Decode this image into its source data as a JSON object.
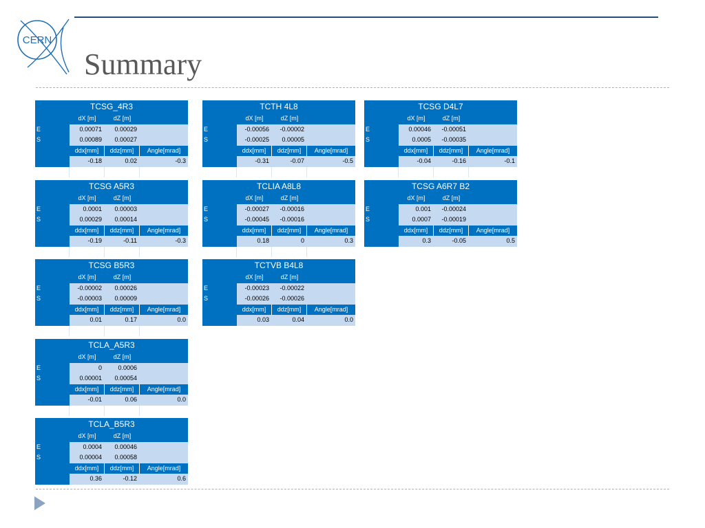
{
  "slide": {
    "title": "Summary",
    "logo_text": "CERN"
  },
  "labels": {
    "dx_m": "dX [m]",
    "dz_m": "dZ [m]",
    "e": "E",
    "s": "S",
    "ddx_mm": "ddx[mm]",
    "ddz_mm": "ddz[mm]",
    "angle_mrad": "Angle[mrad]"
  },
  "tables": [
    {
      "name": "TCSG_4R3",
      "e_dx": "0.00071",
      "e_dz": "0.00029",
      "s_dx": "0.00089",
      "s_dz": "0.00027",
      "ddx": "-0.18",
      "ddz": "0.02",
      "angle": "-0.3"
    },
    {
      "name": "TCTH 4L8",
      "e_dx": "-0.00056",
      "e_dz": "-0.00002",
      "s_dx": "-0.00025",
      "s_dz": "0.00005",
      "ddx": "-0.31",
      "ddz": "-0.07",
      "angle": "-0.5"
    },
    {
      "name": "TCSG D4L7",
      "e_dx": "0.00046",
      "e_dz": "-0.00051",
      "s_dx": "0.0005",
      "s_dz": "-0.00035",
      "ddx": "-0.04",
      "ddz": "-0.16",
      "angle": "-0.1"
    },
    {
      "name": "TCSG A5R3",
      "e_dx": "0.0001",
      "e_dz": "0.00003",
      "s_dx": "0.00029",
      "s_dz": "0.00014",
      "ddx": "-0.19",
      "ddz": "-0.11",
      "angle": "-0.3"
    },
    {
      "name": "TCLIA A8L8",
      "e_dx": "-0.00027",
      "e_dz": "-0.00016",
      "s_dx": "-0.00045",
      "s_dz": "-0.00016",
      "ddx": "0.18",
      "ddz": "0",
      "angle": "0.3"
    },
    {
      "name": "TCSG A6R7 B2",
      "e_dx": "0.001",
      "e_dz": "-0.00024",
      "s_dx": "0.0007",
      "s_dz": "-0.00019",
      "ddx": "0.3",
      "ddz": "-0.05",
      "angle": "0.5"
    },
    {
      "name": "TCSG B5R3",
      "e_dx": "-0.00002",
      "e_dz": "0.00026",
      "s_dx": "-0.00003",
      "s_dz": "0.00009",
      "ddx": "0.01",
      "ddz": "0.17",
      "angle": "0.0"
    },
    {
      "name": "TCTVB B4L8",
      "e_dx": "-0.00023",
      "e_dz": "-0.00022",
      "s_dx": "-0.00026",
      "s_dz": "-0.00026",
      "ddx": "0.03",
      "ddz": "0.04",
      "angle": "0.0"
    },
    {
      "name": "TCLA_A5R3",
      "e_dx": "0",
      "e_dz": "0.0006",
      "s_dx": "0.00001",
      "s_dz": "0.00054",
      "ddx": "-0.01",
      "ddz": "0.06",
      "angle": "0.0"
    },
    {
      "name": "TCLA_B5R3",
      "e_dx": "0.0004",
      "e_dz": "0.00046",
      "s_dx": "0.00004",
      "s_dz": "0.00058",
      "ddx": "0.36",
      "ddz": "-0.12",
      "angle": "0.6"
    }
  ]
}
